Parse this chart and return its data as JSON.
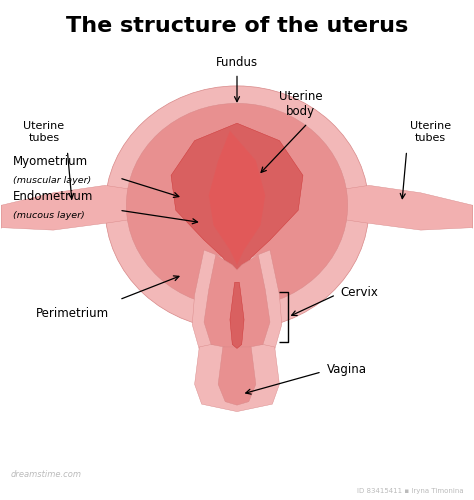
{
  "title": "The structure of the uterus",
  "background_color": "#ffffff",
  "title_fontsize": 16,
  "title_fontweight": "bold",
  "labels": {
    "uterine_tubes_left": "Uterine\ntubes",
    "uterine_tubes_right": "Uterine\ntubes",
    "fundus": "Fundus",
    "uterine_body": "Uterine\nbody",
    "myometrium": "Myometrium",
    "myometrium_sub": "(muscular layer)",
    "endometrium": "Endometrium",
    "endometrium_sub": "(mucous layer)",
    "perimetrium": "Perimetrium",
    "cervix": "Cervix",
    "vagina": "Vagina"
  },
  "colors": {
    "perimetrium": "#f2b8b8",
    "myometrium": "#e89090",
    "endometrium_bg": "#d96060",
    "inner_red": "#cc3333",
    "inner_red2": "#bb4444",
    "cervix_outer": "#f0a8a8",
    "cervix_inner": "#e07070",
    "vagina_outer": "#f0a8a8",
    "tube_outer": "#f2b0b0",
    "tube_inner": "#eda0a0",
    "edge_color": "#d88888",
    "highlight": "#e85555"
  },
  "watermark": "dreamstime.com",
  "stock_id": "ID 83415411 ▪ Iryna Timonina"
}
